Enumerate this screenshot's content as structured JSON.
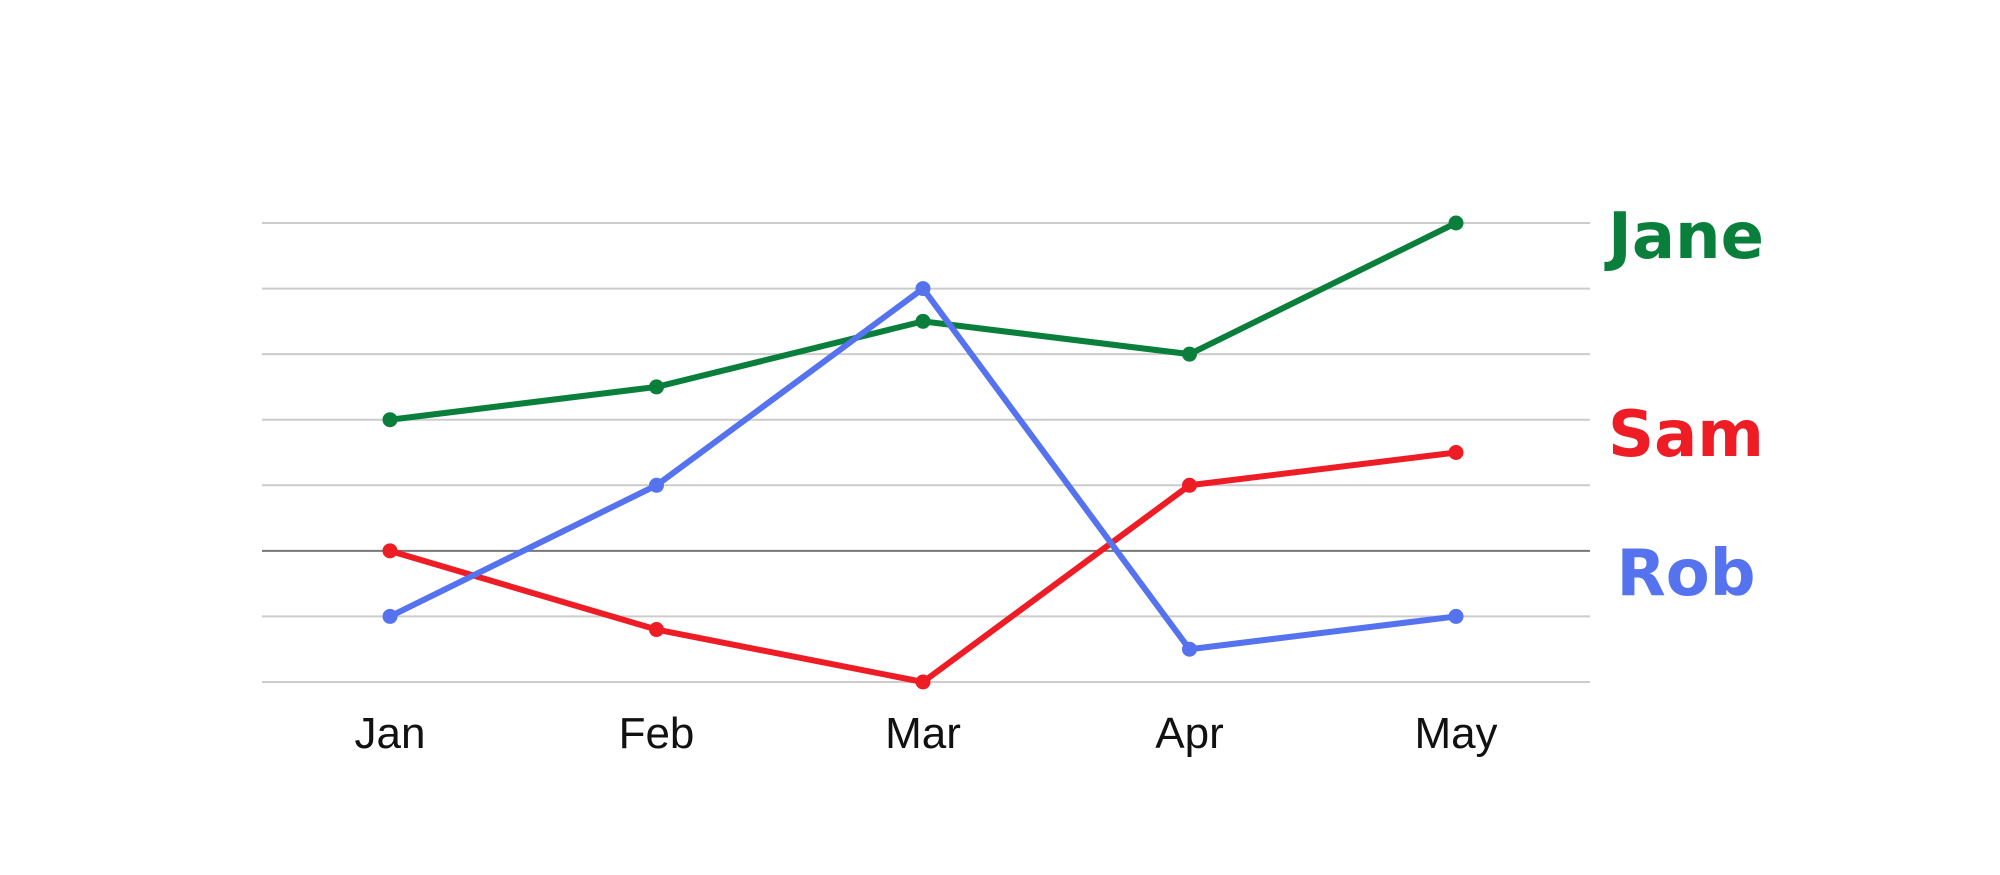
{
  "chart_data": {
    "type": "line",
    "title": "",
    "xlabel": "",
    "ylabel": "",
    "categories": [
      "Jan",
      "Feb",
      "Mar",
      "Apr",
      "May"
    ],
    "ylim": [
      0,
      7
    ],
    "grid": true,
    "baseline_value": 2,
    "legend": "right, labels at line ends",
    "series": [
      {
        "name": "Jane",
        "color": "#0a7f3c",
        "values": [
          4,
          4.5,
          5.5,
          5,
          7
        ]
      },
      {
        "name": "Sam",
        "color": "#ee1c24",
        "values": [
          2,
          0.8,
          0,
          3,
          3.5
        ]
      },
      {
        "name": "Rob",
        "color": "#5572ef",
        "values": [
          1,
          3,
          6,
          0.5,
          1
        ]
      }
    ]
  }
}
